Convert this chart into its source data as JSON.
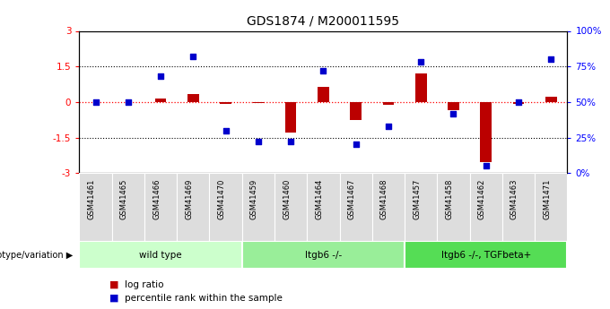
{
  "title": "GDS1874 / M200011595",
  "samples": [
    "GSM41461",
    "GSM41465",
    "GSM41466",
    "GSM41469",
    "GSM41470",
    "GSM41459",
    "GSM41460",
    "GSM41464",
    "GSM41467",
    "GSM41468",
    "GSM41457",
    "GSM41458",
    "GSM41462",
    "GSM41463",
    "GSM41471"
  ],
  "log_ratio": [
    0.0,
    0.0,
    0.15,
    0.35,
    -0.08,
    -0.05,
    -1.3,
    0.65,
    -0.75,
    -0.12,
    1.2,
    -0.35,
    -2.55,
    -0.07,
    0.22
  ],
  "percentile_rank": [
    50,
    50,
    68,
    82,
    30,
    22,
    22,
    72,
    20,
    33,
    78,
    42,
    5,
    50,
    80
  ],
  "groups": [
    {
      "label": "wild type",
      "start": 0,
      "end": 5,
      "color": "#ccffcc"
    },
    {
      "label": "Itgb6 -/-",
      "start": 5,
      "end": 10,
      "color": "#99ee99"
    },
    {
      "label": "Itgb6 -/-, TGFbeta+",
      "start": 10,
      "end": 15,
      "color": "#55dd55"
    }
  ],
  "ylim_left": [
    -3,
    3
  ],
  "ylim_right": [
    0,
    100
  ],
  "yticks_left": [
    -3,
    -1.5,
    0,
    1.5,
    3
  ],
  "yticks_right": [
    0,
    25,
    50,
    75,
    100
  ],
  "ytick_labels_right": [
    "0%",
    "25%",
    "50%",
    "75%",
    "100%"
  ],
  "hlines_dotted": [
    -1.5,
    1.5
  ],
  "hline_red": 0,
  "bar_color": "#bb0000",
  "dot_color": "#0000cc",
  "bar_width": 0.35,
  "dot_size": 25,
  "group_header": "genotype/variation",
  "legend_bar": "log ratio",
  "legend_dot": "percentile rank within the sample",
  "background_color": "#ffffff",
  "plot_bg": "#ffffff",
  "tick_label_bg": "#dddddd"
}
